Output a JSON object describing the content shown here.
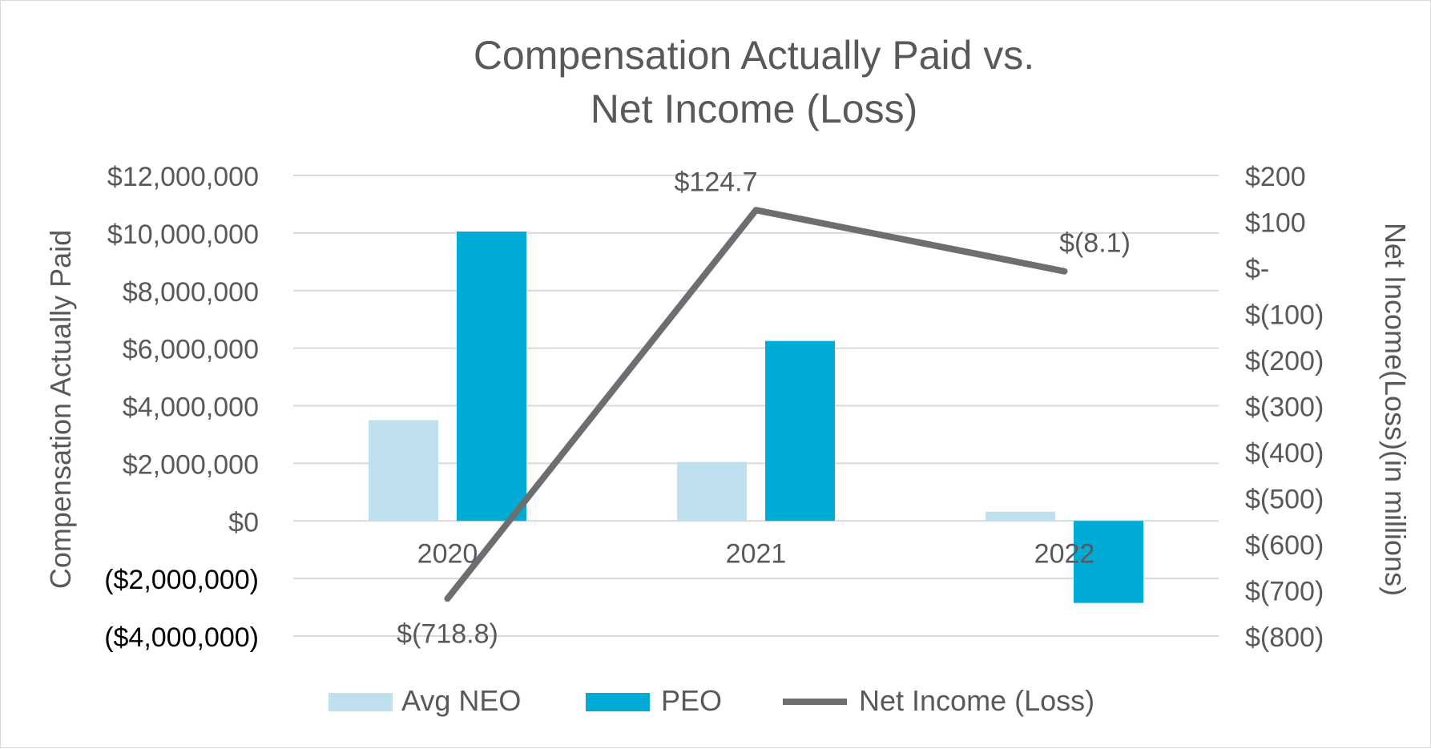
{
  "chart_data": {
    "type": "bar",
    "title": [
      "Compensation Actually Paid vs.",
      "Net Income (Loss)"
    ],
    "categories": [
      "2020",
      "2021",
      "2022"
    ],
    "ylabel": "Compensation Actually Paid",
    "y2label": "Net Income(Loss)(in millions)",
    "ylim": [
      -4000000,
      12000000
    ],
    "y2lim": [
      -800,
      200
    ],
    "ytick_values": [
      12000000,
      10000000,
      8000000,
      6000000,
      4000000,
      2000000,
      0,
      -2000000,
      -4000000
    ],
    "yticks": [
      "$12,000,000",
      "$10,000,000",
      "$8,000,000",
      "$6,000,000",
      "$4,000,000",
      "$2,000,000",
      "$0",
      "($2,000,000)",
      "($4,000,000)"
    ],
    "y2tick_values": [
      200,
      100,
      0,
      -100,
      -200,
      -300,
      -400,
      -500,
      -600,
      -700,
      -800
    ],
    "y2ticks": [
      "$200",
      "$100",
      "$-",
      "$(100)",
      "$(200)",
      "$(300)",
      "$(400)",
      "$(500)",
      "$(600)",
      "$(700)",
      "$(800)"
    ],
    "grid": true,
    "legend_position": "bottom",
    "series": [
      {
        "name": "Avg NEO",
        "type": "bar",
        "axis": "left",
        "color": "#bfe0ef",
        "values": [
          3500000,
          2050000,
          320000
        ]
      },
      {
        "name": "PEO",
        "type": "bar",
        "axis": "left",
        "color": "#00abd6",
        "values": [
          10050000,
          6250000,
          -2850000
        ]
      },
      {
        "name": "Net Income (Loss)",
        "type": "line",
        "axis": "right",
        "color": "#6d6e71",
        "values": [
          -718.8,
          124.7,
          -8.1
        ],
        "labels": [
          "$(718.8)",
          "$124.7",
          "$(8.1)"
        ]
      }
    ],
    "colors": {
      "axis_text": "#595959",
      "grid": "#d9d9d9",
      "dark_text": "#000000"
    }
  }
}
